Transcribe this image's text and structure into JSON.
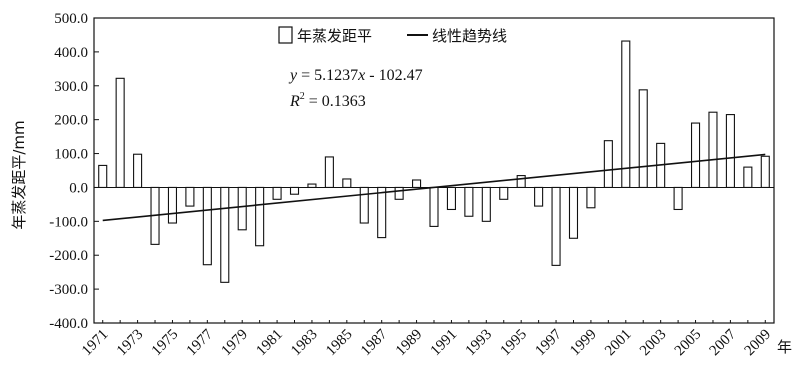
{
  "chart_data": {
    "type": "bar",
    "ylabel": "年蒸发距平/mm",
    "xlabel": "年",
    "ylim": [
      -400,
      500
    ],
    "yticks": [
      "500.0",
      "400.0",
      "300.0",
      "200.0",
      "100.0",
      "0.0",
      "-100.0",
      "-200.0",
      "-300.0",
      "-400.0"
    ],
    "ytick_values": [
      500,
      400,
      300,
      200,
      100,
      0,
      -100,
      -200,
      -300,
      -400
    ],
    "xtick_labels": [
      "1971",
      "1973",
      "1975",
      "1977",
      "1979",
      "1981",
      "1983",
      "1985",
      "1987",
      "1989",
      "1991",
      "1993",
      "1995",
      "1997",
      "1999",
      "2001",
      "2003",
      "2005",
      "2007",
      "2009"
    ],
    "categories": [
      1971,
      1972,
      1973,
      1974,
      1975,
      1976,
      1977,
      1978,
      1979,
      1980,
      1981,
      1982,
      1983,
      1984,
      1985,
      1986,
      1987,
      1988,
      1989,
      1990,
      1991,
      1992,
      1993,
      1994,
      1995,
      1996,
      1997,
      1998,
      1999,
      2000,
      2001,
      2002,
      2003,
      2004,
      2005,
      2006,
      2007,
      2008,
      2009
    ],
    "series": [
      {
        "name": "年蒸发距平",
        "values": [
          65,
          322,
          98,
          -168,
          -105,
          -55,
          -228,
          -280,
          -125,
          -172,
          -35,
          -20,
          10,
          90,
          25,
          -105,
          -148,
          -35,
          22,
          -115,
          -65,
          -85,
          -100,
          -35,
          35,
          -55,
          -230,
          -150,
          -60,
          138,
          432,
          288,
          130,
          -65,
          190,
          222,
          215,
          60,
          92
        ]
      }
    ],
    "trend": {
      "name": "线性趋势线",
      "slope": 5.1237,
      "intercept": -102.47,
      "equation_prefix": "y",
      "equation_rest": " = 5.1237",
      "equation_x": "x",
      "equation_tail": " - 102.47",
      "r2_letter": "R",
      "r2_sup": "2",
      "r2_rest": " = 0.1363"
    },
    "legend_position": "top-center",
    "grid": false
  }
}
